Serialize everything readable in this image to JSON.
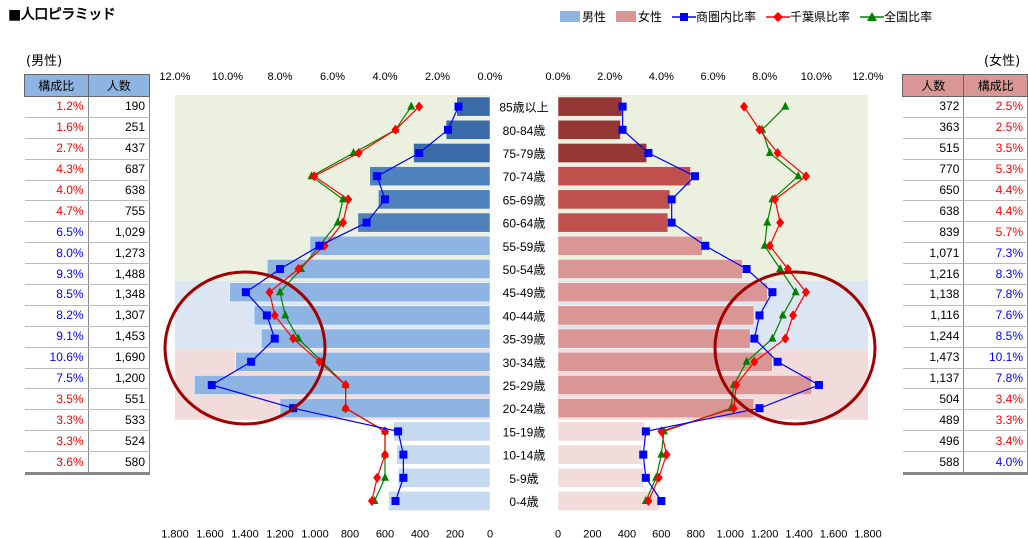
{
  "title": "■人口ピラミッド",
  "left": {
    "label": "(男性)",
    "headers": [
      "構成比",
      "人数"
    ]
  },
  "right": {
    "label": "(女性)",
    "headers": [
      "人数",
      "構成比"
    ]
  },
  "chart_data": {
    "type": "bar",
    "categories": [
      "85歳以上",
      "80-84歳",
      "75-79歳",
      "70-74歳",
      "65-69歳",
      "60-64歳",
      "55-59歳",
      "50-54歳",
      "45-49歳",
      "40-44歳",
      "35-39歳",
      "30-34歳",
      "25-29歳",
      "20-24歳",
      "15-19歳",
      "10-14歳",
      "5-9歳",
      "0-4歳"
    ],
    "series": [
      {
        "name": "男性",
        "values": [
          190,
          251,
          437,
          687,
          638,
          755,
          1029,
          1273,
          1488,
          1348,
          1307,
          1453,
          1690,
          1200,
          551,
          533,
          524,
          580
        ]
      },
      {
        "name": "女性",
        "values": [
          372,
          363,
          515,
          770,
          650,
          638,
          839,
          1071,
          1216,
          1138,
          1116,
          1244,
          1473,
          1137,
          504,
          489,
          496,
          588
        ]
      },
      {
        "name": "商圏内比率",
        "male": [
          1.2,
          1.6,
          2.7,
          4.3,
          4.0,
          4.7,
          6.5,
          8.0,
          9.3,
          8.5,
          8.2,
          9.1,
          10.6,
          7.5,
          3.5,
          3.3,
          3.3,
          3.6
        ],
        "female": [
          2.5,
          2.5,
          3.5,
          5.3,
          4.4,
          4.4,
          5.7,
          7.3,
          8.3,
          7.8,
          7.6,
          8.5,
          10.1,
          7.8,
          3.4,
          3.3,
          3.4,
          4.0
        ]
      },
      {
        "name": "千葉県比率",
        "male": [
          2.7,
          3.6,
          5.0,
          6.7,
          5.4,
          5.6,
          6.3,
          7.3,
          8.4,
          8.2,
          7.5,
          6.5,
          5.5,
          5.5,
          4.0,
          4.0,
          4.3,
          4.5
        ],
        "female": [
          7.2,
          7.8,
          8.5,
          9.6,
          8.4,
          8.6,
          8.2,
          8.9,
          9.6,
          9.1,
          8.8,
          7.6,
          6.9,
          6.8,
          4.0,
          4.2,
          3.9,
          3.5
        ]
      },
      {
        "name": "全国比率",
        "male": [
          3.0,
          3.6,
          5.2,
          6.8,
          5.6,
          5.8,
          6.5,
          7.2,
          8.0,
          7.8,
          7.3,
          6.4,
          5.5,
          5.5,
          4.0,
          4.0,
          4.0,
          4.4
        ],
        "female": [
          8.8,
          7.9,
          8.2,
          9.3,
          8.3,
          8.1,
          8.0,
          8.6,
          9.2,
          8.7,
          8.3,
          7.3,
          6.8,
          6.7,
          4.1,
          4.0,
          3.8,
          3.4
        ]
      }
    ],
    "pct_ticks": [
      "12.0%",
      "10.0%",
      "8.0%",
      "6.0%",
      "4.0%",
      "2.0%",
      "0.0%"
    ],
    "pct_ticks_right": [
      "0.0%",
      "2.0%",
      "4.0%",
      "6.0%",
      "8.0%",
      "10.0%",
      "12.0%"
    ],
    "count_ticks_left": [
      "1,800",
      "1,600",
      "1,400",
      "1,200",
      "1,000",
      "800",
      "600",
      "400",
      "200",
      "0"
    ],
    "count_ticks_right": [
      "0",
      "200",
      "400",
      "600",
      "800",
      "1,000",
      "1,200",
      "1,400",
      "1,600",
      "1,800"
    ],
    "xlim_count": [
      0,
      1800
    ],
    "xlim_pct": [
      0,
      12
    ],
    "left_table": {
      "pct": [
        "1.2%",
        "1.6%",
        "2.7%",
        "4.3%",
        "4.0%",
        "4.7%",
        "6.5%",
        "8.0%",
        "9.3%",
        "8.5%",
        "8.2%",
        "9.1%",
        "10.6%",
        "7.5%",
        "3.5%",
        "3.3%",
        "3.3%",
        "3.6%"
      ],
      "count": [
        "190",
        "251",
        "437",
        "687",
        "638",
        "755",
        "1,029",
        "1,273",
        "1,488",
        "1,348",
        "1,307",
        "1,453",
        "1,690",
        "1,200",
        "551",
        "533",
        "524",
        "580"
      ]
    },
    "right_table": {
      "count": [
        "372",
        "363",
        "515",
        "770",
        "650",
        "638",
        "839",
        "1,071",
        "1,216",
        "1,138",
        "1,116",
        "1,244",
        "1,473",
        "1,137",
        "504",
        "489",
        "496",
        "588"
      ],
      "pct": [
        "2.5%",
        "2.5%",
        "3.5%",
        "5.3%",
        "4.4%",
        "4.4%",
        "5.7%",
        "7.3%",
        "8.3%",
        "7.8%",
        "7.6%",
        "8.5%",
        "10.1%",
        "7.8%",
        "3.4%",
        "3.3%",
        "3.4%",
        "4.0%"
      ]
    }
  },
  "colors": {
    "male": "#8db4e2",
    "female": "#da9694",
    "local": "#0000ff",
    "pref": "#ff0000",
    "nation": "#008000",
    "circle": "#a00000"
  }
}
